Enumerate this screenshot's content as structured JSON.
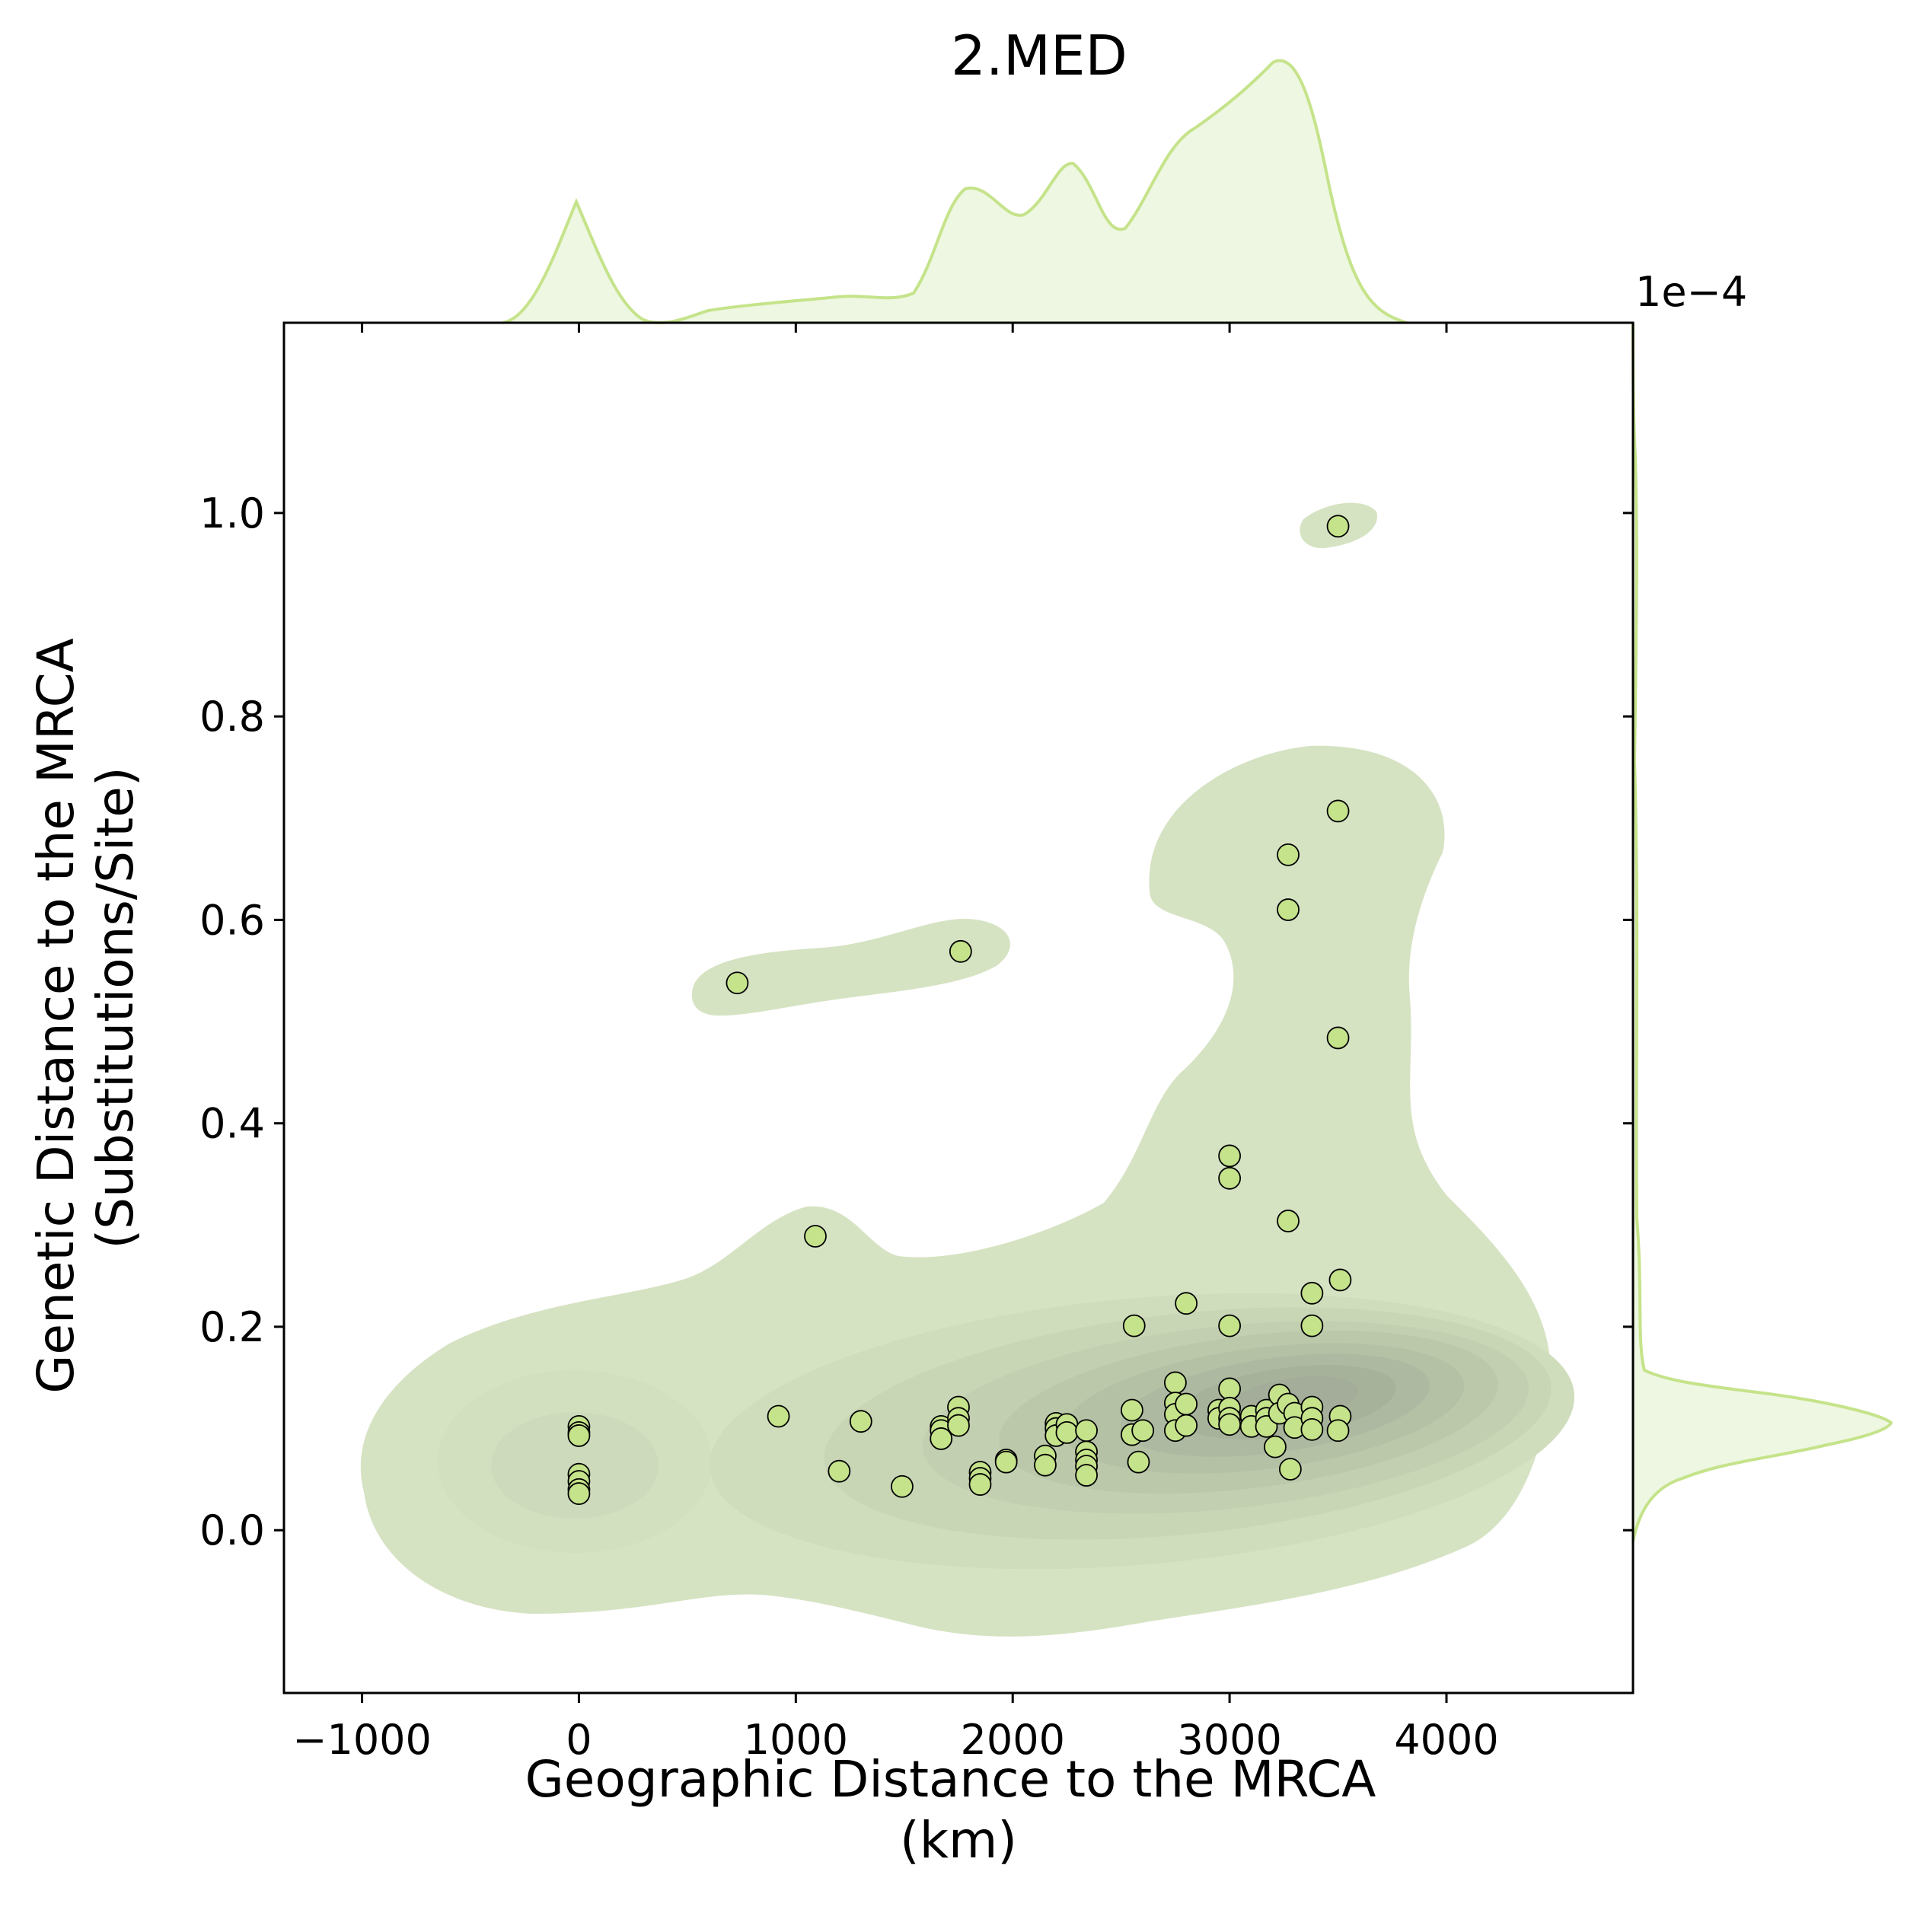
{
  "chart_data": {
    "type": "scatter",
    "title": "2.MED",
    "xlabel": [
      "Geographic Distance to the MRCA",
      "(km)"
    ],
    "ylabel": [
      "Genetic Distance to the MRCA",
      "(Substitutions/Site)"
    ],
    "y_offset_label": "1e−4",
    "y_scale_factor": 0.0001,
    "xlim": [
      -1360,
      4860
    ],
    "ylim": [
      -0.16,
      1.187
    ],
    "x_ticks": [
      -1000,
      0,
      1000,
      2000,
      3000,
      4000
    ],
    "x_tick_labels": [
      "−1000",
      "0",
      "1000",
      "2000",
      "3000",
      "4000"
    ],
    "y_ticks": [
      0.0,
      0.2,
      0.4,
      0.6,
      0.8,
      1.0
    ],
    "y_tick_labels": [
      "0.0",
      "0.2",
      "0.4",
      "0.6",
      "0.8",
      "1.0"
    ],
    "grid": false,
    "legend": "none",
    "colors": {
      "points": "#c5e38a",
      "point_edge": "#000000",
      "kde_fill": "#d6e3c3",
      "kde_dense": "#a3ad9a",
      "marginal_line": "#c5e38a",
      "marginal_fill": "#eef7e1"
    },
    "overlays": [
      "bivariate KDE contours",
      "marginal KDE of x (top)",
      "marginal KDE of y (right)"
    ],
    "points": [
      {
        "x": 0,
        "y": 0.102
      },
      {
        "x": 0,
        "y": 0.096
      },
      {
        "x": 0,
        "y": 0.093
      },
      {
        "x": 0,
        "y": 0.055
      },
      {
        "x": 0,
        "y": 0.048
      },
      {
        "x": 0,
        "y": 0.04
      },
      {
        "x": 0,
        "y": 0.036
      },
      {
        "x": 730,
        "y": 0.538
      },
      {
        "x": 920,
        "y": 0.112
      },
      {
        "x": 1090,
        "y": 0.289
      },
      {
        "x": 1200,
        "y": 0.058
      },
      {
        "x": 1300,
        "y": 0.107
      },
      {
        "x": 1490,
        "y": 0.043
      },
      {
        "x": 1670,
        "y": 0.102
      },
      {
        "x": 1670,
        "y": 0.098
      },
      {
        "x": 1670,
        "y": 0.09
      },
      {
        "x": 1750,
        "y": 0.121
      },
      {
        "x": 1750,
        "y": 0.11
      },
      {
        "x": 1750,
        "y": 0.103
      },
      {
        "x": 1760,
        "y": 0.569
      },
      {
        "x": 1850,
        "y": 0.057
      },
      {
        "x": 1850,
        "y": 0.051
      },
      {
        "x": 1850,
        "y": 0.045
      },
      {
        "x": 1970,
        "y": 0.069
      },
      {
        "x": 1970,
        "y": 0.067
      },
      {
        "x": 2150,
        "y": 0.073
      },
      {
        "x": 2150,
        "y": 0.064
      },
      {
        "x": 2200,
        "y": 0.105
      },
      {
        "x": 2200,
        "y": 0.1
      },
      {
        "x": 2200,
        "y": 0.093
      },
      {
        "x": 2250,
        "y": 0.104
      },
      {
        "x": 2250,
        "y": 0.096
      },
      {
        "x": 2340,
        "y": 0.098
      },
      {
        "x": 2340,
        "y": 0.077
      },
      {
        "x": 2340,
        "y": 0.069
      },
      {
        "x": 2340,
        "y": 0.063
      },
      {
        "x": 2340,
        "y": 0.054
      },
      {
        "x": 2550,
        "y": 0.118
      },
      {
        "x": 2550,
        "y": 0.094
      },
      {
        "x": 2560,
        "y": 0.201
      },
      {
        "x": 2580,
        "y": 0.067
      },
      {
        "x": 2600,
        "y": 0.098
      },
      {
        "x": 2750,
        "y": 0.145
      },
      {
        "x": 2750,
        "y": 0.125
      },
      {
        "x": 2750,
        "y": 0.114
      },
      {
        "x": 2750,
        "y": 0.098
      },
      {
        "x": 2800,
        "y": 0.223
      },
      {
        "x": 2800,
        "y": 0.124
      },
      {
        "x": 2800,
        "y": 0.103
      },
      {
        "x": 2950,
        "y": 0.118
      },
      {
        "x": 2950,
        "y": 0.11
      },
      {
        "x": 3000,
        "y": 0.368
      },
      {
        "x": 3000,
        "y": 0.346
      },
      {
        "x": 3000,
        "y": 0.201
      },
      {
        "x": 3000,
        "y": 0.139
      },
      {
        "x": 3000,
        "y": 0.12
      },
      {
        "x": 3000,
        "y": 0.11
      },
      {
        "x": 3000,
        "y": 0.104
      },
      {
        "x": 3100,
        "y": 0.112
      },
      {
        "x": 3100,
        "y": 0.102
      },
      {
        "x": 3170,
        "y": 0.118
      },
      {
        "x": 3170,
        "y": 0.11
      },
      {
        "x": 3170,
        "y": 0.102
      },
      {
        "x": 3210,
        "y": 0.082
      },
      {
        "x": 3230,
        "y": 0.133
      },
      {
        "x": 3230,
        "y": 0.115
      },
      {
        "x": 3270,
        "y": 0.664
      },
      {
        "x": 3270,
        "y": 0.61
      },
      {
        "x": 3270,
        "y": 0.304
      },
      {
        "x": 3270,
        "y": 0.124
      },
      {
        "x": 3280,
        "y": 0.06
      },
      {
        "x": 3300,
        "y": 0.115
      },
      {
        "x": 3300,
        "y": 0.101
      },
      {
        "x": 3380,
        "y": 0.233
      },
      {
        "x": 3380,
        "y": 0.201
      },
      {
        "x": 3380,
        "y": 0.121
      },
      {
        "x": 3380,
        "y": 0.11
      },
      {
        "x": 3380,
        "y": 0.099
      },
      {
        "x": 3500,
        "y": 0.987
      },
      {
        "x": 3500,
        "y": 0.707
      },
      {
        "x": 3500,
        "y": 0.484
      },
      {
        "x": 3510,
        "y": 0.246
      },
      {
        "x": 3510,
        "y": 0.112
      },
      {
        "x": 3500,
        "y": 0.098
      }
    ]
  }
}
